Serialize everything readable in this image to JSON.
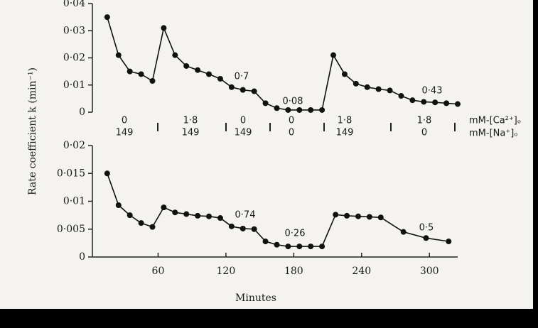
{
  "ylabel": "Rate coefficient k (min⁻¹)",
  "conditions": {
    "ca_label": "mM‑[Ca²⁺]ₒ",
    "na_label": "mM‑[Na⁺]ₒ",
    "ca": [
      "0",
      "1·8",
      "0",
      "0",
      "1·8",
      "1·8"
    ],
    "na": [
      "149",
      "149",
      "149",
      "0",
      "149",
      "0"
    ]
  },
  "chart_data": [
    {
      "type": "line",
      "color": "#111111",
      "x": [
        15,
        25,
        35,
        45,
        55,
        65,
        75,
        85,
        95,
        105,
        115,
        125,
        135,
        145,
        155,
        165,
        175,
        185,
        195,
        205,
        215,
        225,
        235,
        245,
        255,
        265,
        275,
        285,
        295,
        305,
        315,
        325
      ],
      "values": [
        0.035,
        0.021,
        0.015,
        0.014,
        0.0115,
        0.031,
        0.021,
        0.017,
        0.0155,
        0.014,
        0.0123,
        0.0092,
        0.0082,
        0.0077,
        0.0033,
        0.0015,
        0.0008,
        0.0008,
        0.0008,
        0.0008,
        0.021,
        0.014,
        0.0105,
        0.0092,
        0.0085,
        0.008,
        0.006,
        0.0044,
        0.0038,
        0.0036,
        0.0033,
        0.003
      ],
      "xlim": [
        0,
        325
      ],
      "ylim": [
        0,
        0.04
      ],
      "yticks": [
        0,
        {
          "value": 0.01,
          "label": "0·01"
        },
        {
          "value": 0.02,
          "label": "0·02"
        },
        {
          "value": 0.03,
          "label": "0·03"
        },
        {
          "value": 0.04,
          "label": "0·04"
        }
      ],
      "annotations": [
        "0·7",
        "0·08",
        "0·43"
      ]
    },
    {
      "type": "line",
      "color": "#111111",
      "x": [
        15,
        25,
        35,
        45,
        55,
        65,
        75,
        85,
        95,
        105,
        115,
        125,
        135,
        145,
        155,
        165,
        175,
        185,
        195,
        205,
        217,
        227,
        237,
        247,
        257,
        277,
        297,
        317
      ],
      "values": [
        0.015,
        0.0093,
        0.0075,
        0.0061,
        0.0054,
        0.0089,
        0.008,
        0.0077,
        0.0074,
        0.0073,
        0.007,
        0.0055,
        0.0051,
        0.005,
        0.0028,
        0.0022,
        0.0019,
        0.0019,
        0.0019,
        0.0019,
        0.0076,
        0.0074,
        0.0073,
        0.0072,
        0.0071,
        0.0045,
        0.0034,
        0.0028
      ],
      "xlim": [
        0,
        325
      ],
      "ylim": [
        0,
        0.02
      ],
      "xticks": [
        60,
        120,
        180,
        240,
        300
      ],
      "yticks": [
        0,
        {
          "value": 0.005,
          "label": "0·005"
        },
        {
          "value": 0.01,
          "label": "0·01"
        },
        {
          "value": 0.015,
          "label": "0·015"
        },
        {
          "value": 0.02,
          "label": "0·02"
        }
      ],
      "xlabel": "Minutes",
      "annotations": [
        "0·74",
        "0·26",
        "0·5"
      ]
    }
  ]
}
